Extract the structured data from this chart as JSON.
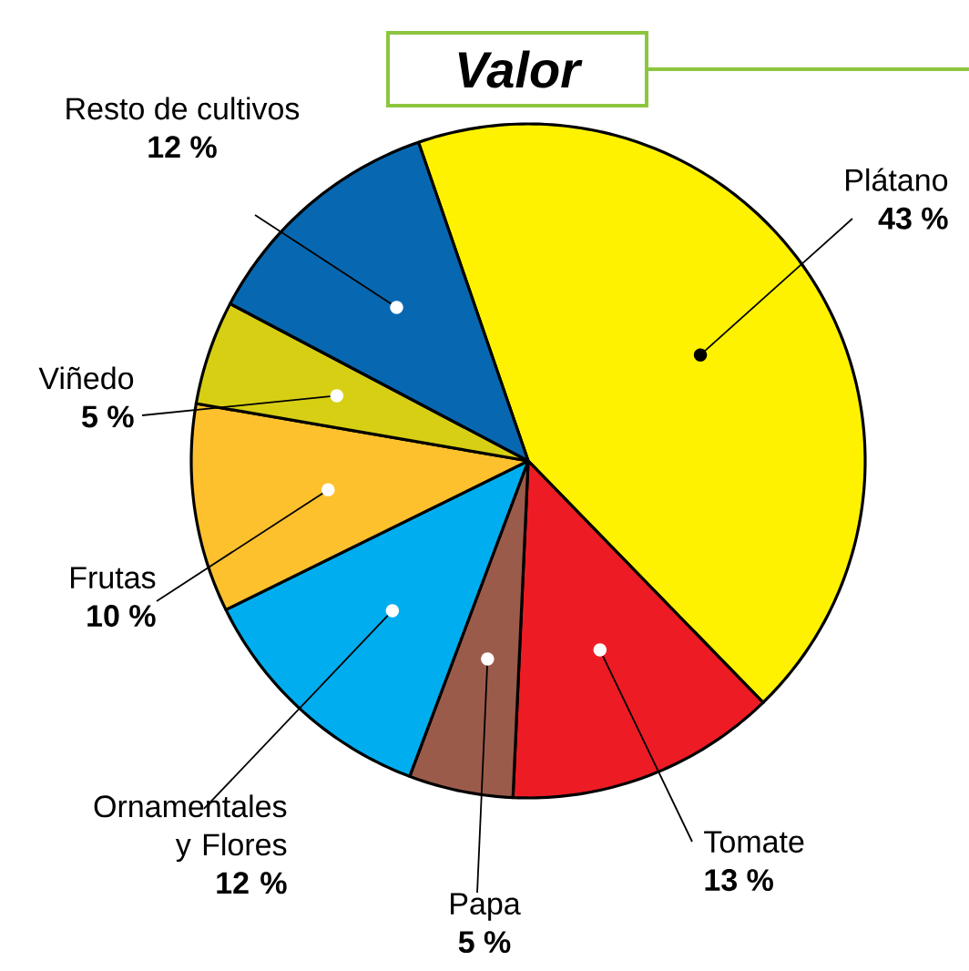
{
  "chart_data": {
    "type": "pie",
    "title": "Valor",
    "categories": [
      "Plátano",
      "Tomate",
      "Papa",
      "Ornamentales y Flores",
      "Frutas",
      "Viñedo",
      "Resto de cultivos"
    ],
    "values": [
      43,
      13,
      5,
      12,
      10,
      5,
      12
    ],
    "value_labels": [
      "43 %",
      "13 %",
      "5 %",
      "12 %",
      "10 %",
      "5 %",
      "12 %"
    ],
    "colors": [
      "#fff200",
      "#ed1c24",
      "#9b5b4b",
      "#00aeef",
      "#fdc12e",
      "#d7cf14",
      "#0768b1"
    ]
  }
}
